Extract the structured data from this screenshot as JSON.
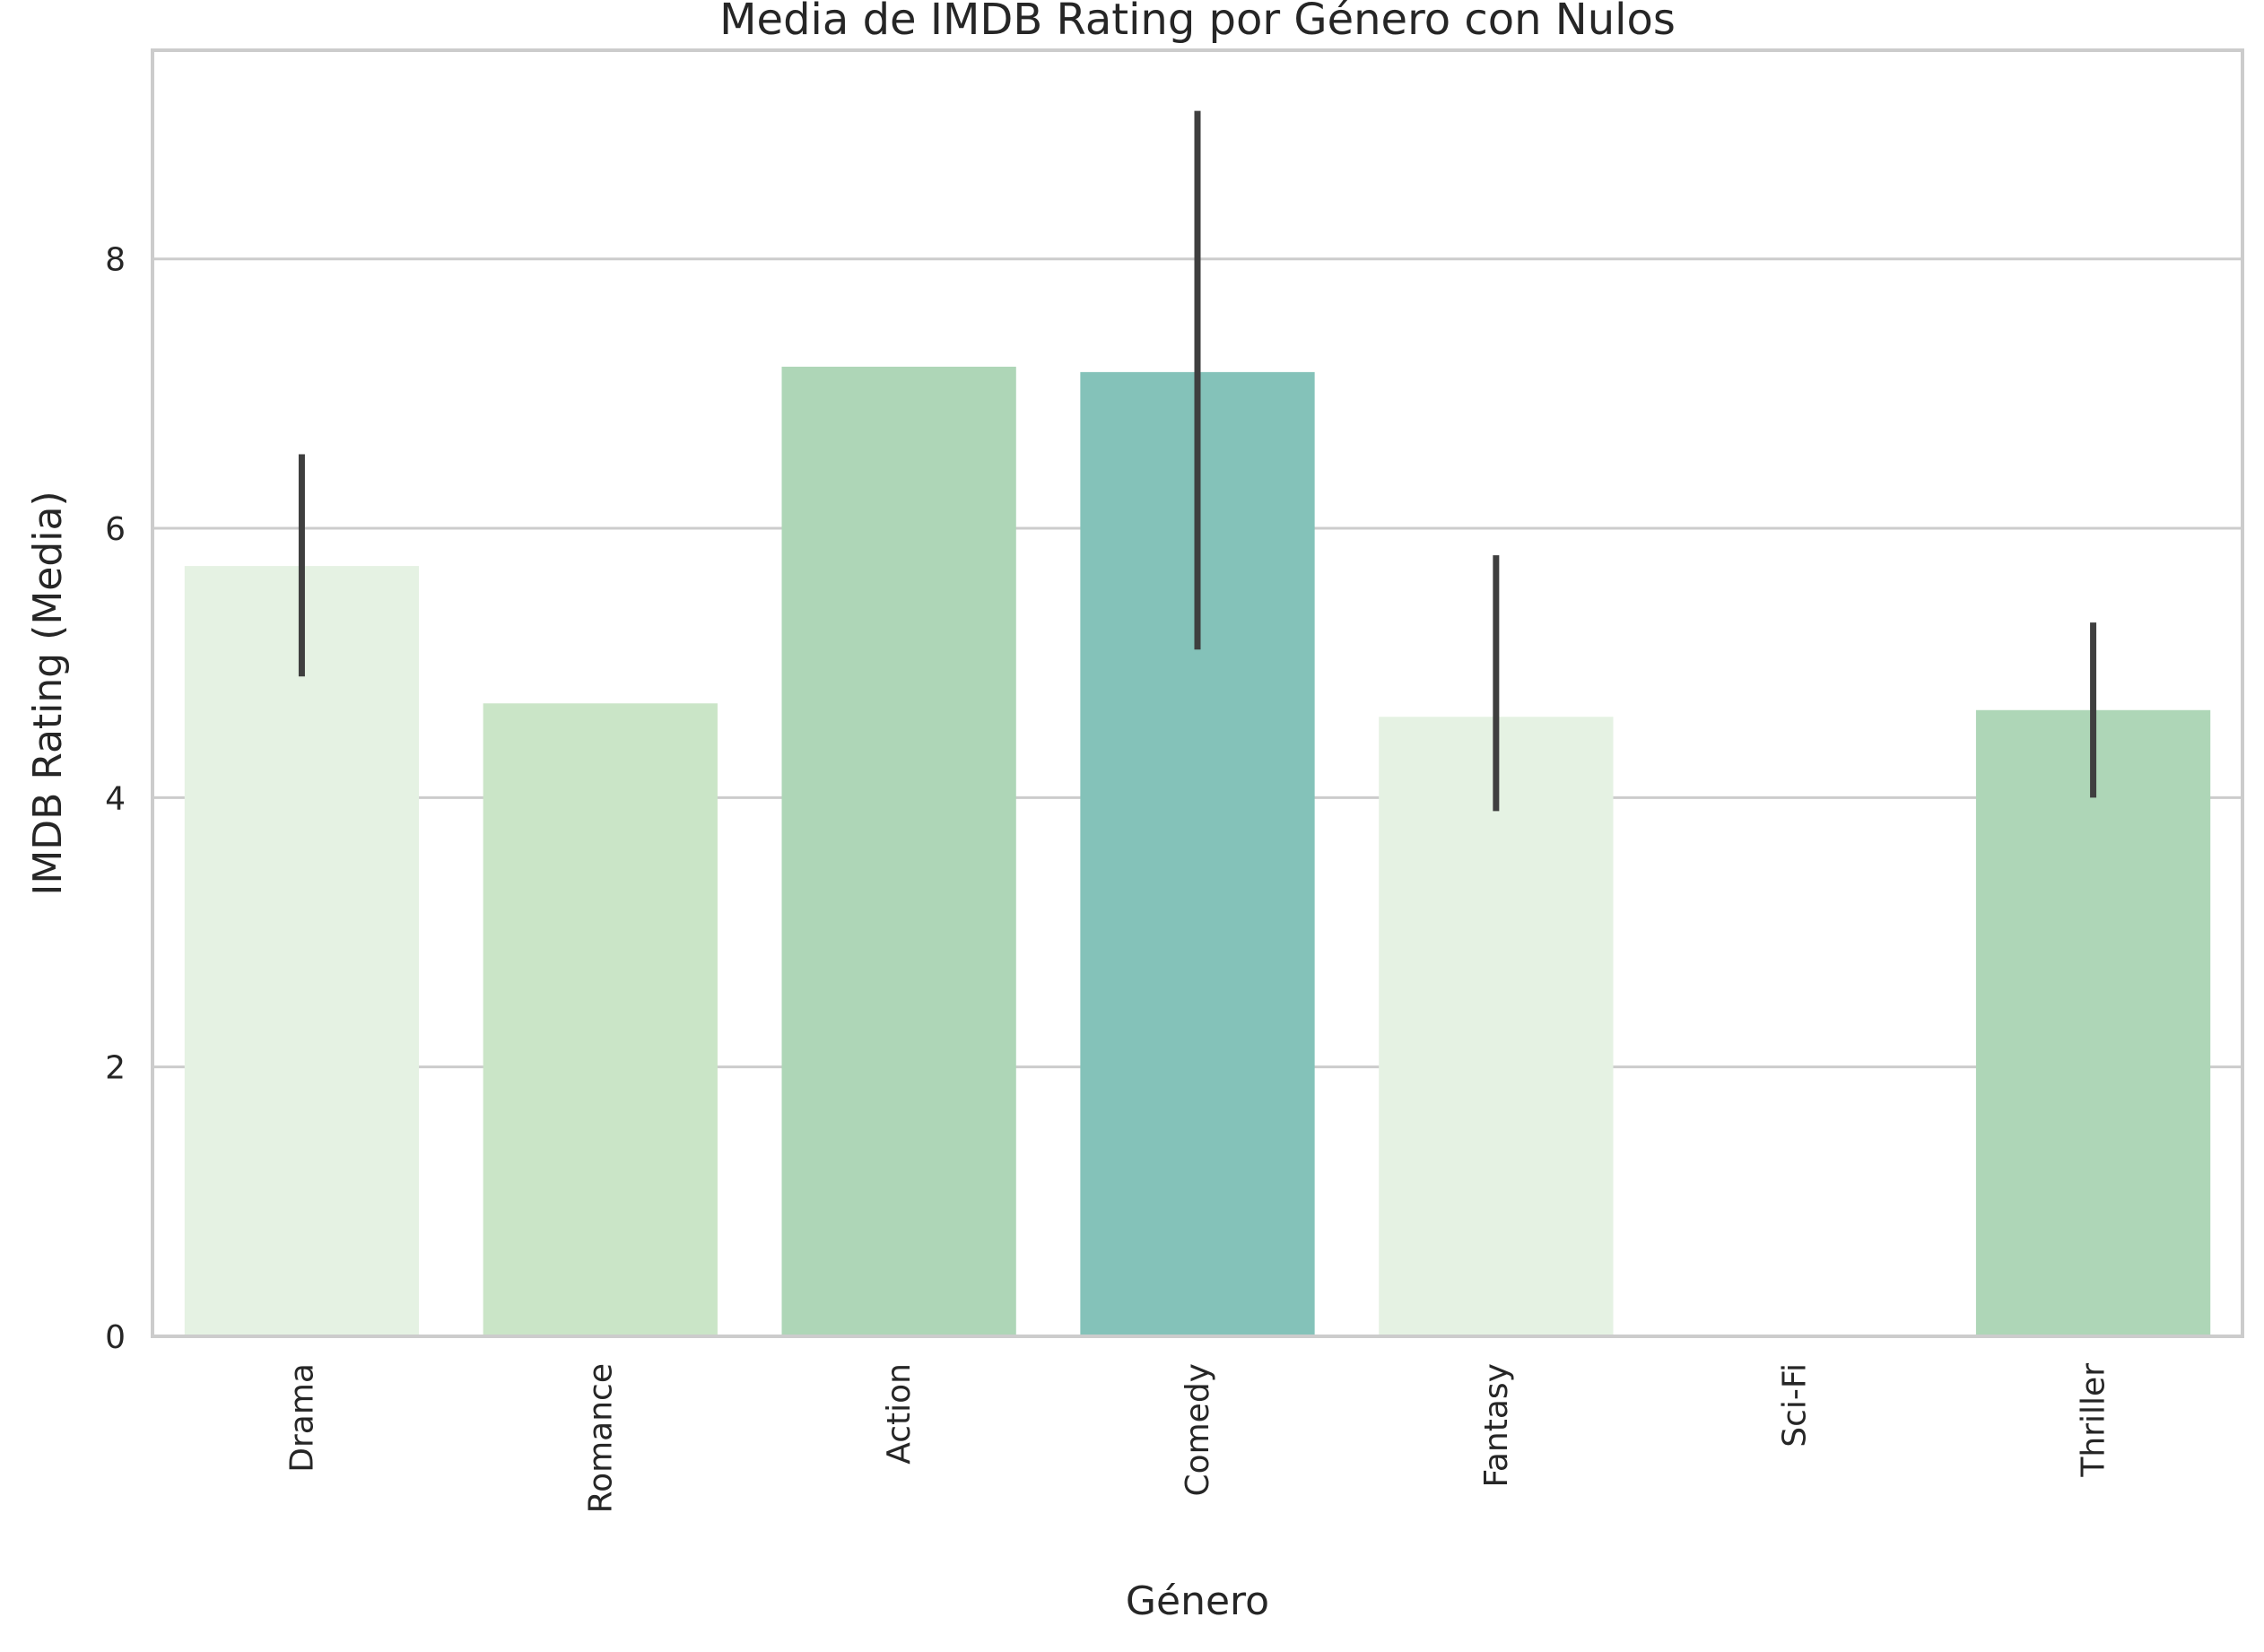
{
  "chart_data": {
    "type": "bar",
    "title": "Media de IMDB Rating por Género con Nulos",
    "xlabel": "Género",
    "ylabel": "IMDB Rating (Media)",
    "categories": [
      "Drama",
      "Romance",
      "Action",
      "Comedy",
      "Fantasy",
      "Sci-Fi",
      "Thriller"
    ],
    "values": [
      5.72,
      4.7,
      7.2,
      7.16,
      4.6,
      null,
      4.65
    ],
    "error_low": [
      4.9,
      null,
      null,
      5.1,
      3.9,
      null,
      4.0
    ],
    "error_high": [
      6.55,
      null,
      null,
      9.1,
      5.8,
      null,
      5.3
    ],
    "bar_colors": [
      "#e5f2e3",
      "#cae5c7",
      "#aed6b7",
      "#84c2b9",
      "#e5f2e3",
      "#cae5c7",
      "#aed6b7"
    ],
    "error_color": "#3f3f3f",
    "ylim": [
      0,
      9.55
    ],
    "yticks": [
      0,
      2,
      4,
      6,
      8
    ],
    "grid": "y",
    "legend": "none"
  }
}
